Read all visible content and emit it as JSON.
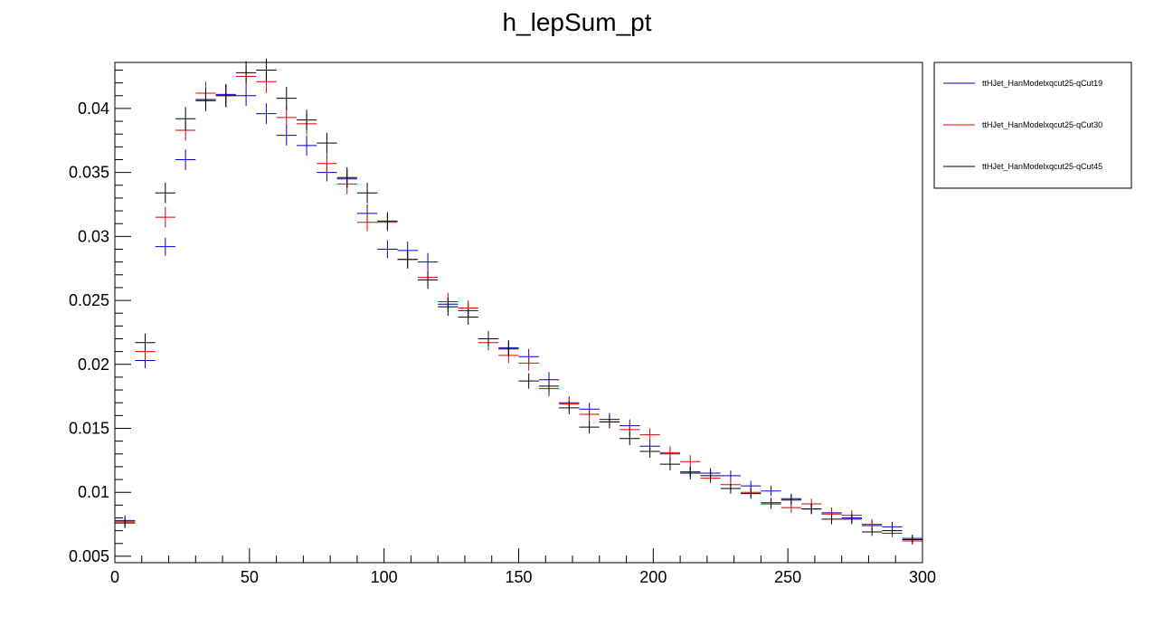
{
  "chart_data": {
    "type": "scatter",
    "title": "h_lepSum_pt",
    "xlabel": "",
    "ylabel": "",
    "xlim": [
      0,
      300
    ],
    "ylim": [
      0.0045,
      0.0436
    ],
    "x_ticks": [
      0,
      50,
      100,
      150,
      200,
      250,
      300
    ],
    "y_ticks": [
      0.005,
      0.01,
      0.015,
      0.02,
      0.025,
      0.03,
      0.035,
      0.04
    ],
    "x_tick_labels": [
      "0",
      "50",
      "100",
      "150",
      "200",
      "250",
      "300"
    ],
    "y_tick_labels": [
      "0.005",
      "0.01",
      "0.015",
      "0.02",
      "0.025",
      "0.03",
      "0.035",
      "0.04"
    ],
    "grid": false,
    "legend_position": "outside-right",
    "bin_width": 7.5,
    "x": [
      3.75,
      11.25,
      18.75,
      26.25,
      33.75,
      41.25,
      48.75,
      56.25,
      63.75,
      71.25,
      78.75,
      86.25,
      93.75,
      101.25,
      108.75,
      116.25,
      123.75,
      131.25,
      138.75,
      146.25,
      153.75,
      161.25,
      168.75,
      176.25,
      183.75,
      191.25,
      198.75,
      206.25,
      213.75,
      221.25,
      228.75,
      236.25,
      243.75,
      251.25,
      258.75,
      266.25,
      273.75,
      281.25,
      288.75,
      296.25
    ],
    "series": [
      {
        "name": "ttHJet_HanModelxqcut25-qCut19",
        "color": "#0000cc",
        "values": [
          0.0078,
          0.0203,
          0.0292,
          0.036,
          0.0406,
          0.0411,
          0.041,
          0.0396,
          0.0379,
          0.0371,
          0.035,
          0.0345,
          0.0318,
          0.029,
          0.0289,
          0.028,
          0.0247,
          0.0242,
          0.022,
          0.0213,
          0.0206,
          0.0188,
          0.017,
          0.0165,
          0.0157,
          0.0152,
          0.0136,
          0.013,
          0.0116,
          0.0115,
          0.0113,
          0.0105,
          0.0101,
          0.0095,
          0.0087,
          0.0084,
          0.008,
          0.0074,
          0.0073,
          0.0064
        ],
        "errors": [
          0.0004,
          0.0006,
          0.0007,
          0.0008,
          0.0008,
          0.0008,
          0.0008,
          0.0008,
          0.0008,
          0.0008,
          0.0007,
          0.0007,
          0.0007,
          0.0007,
          0.0007,
          0.0007,
          0.0006,
          0.0006,
          0.0006,
          0.0006,
          0.0006,
          0.0006,
          0.0005,
          0.0005,
          0.0005,
          0.0005,
          0.0005,
          0.0005,
          0.0004,
          0.0004,
          0.0004,
          0.0004,
          0.0004,
          0.0004,
          0.0004,
          0.0004,
          0.0004,
          0.0004,
          0.0004,
          0.0003
        ]
      },
      {
        "name": "ttHJet_HanModelxqcut25-qCut30",
        "color": "#dd0000",
        "values": [
          0.0077,
          0.021,
          0.0315,
          0.0383,
          0.0412,
          0.041,
          0.0425,
          0.0421,
          0.0393,
          0.0388,
          0.0357,
          0.0341,
          0.0311,
          0.0311,
          0.0282,
          0.0268,
          0.0249,
          0.0244,
          0.0217,
          0.0207,
          0.0201,
          0.0181,
          0.0169,
          0.0161,
          0.0155,
          0.0149,
          0.0145,
          0.0131,
          0.0124,
          0.0111,
          0.0106,
          0.01,
          0.0092,
          0.0088,
          0.0091,
          0.0083,
          0.0082,
          0.0075,
          0.0068,
          0.0062
        ],
        "errors": [
          0.0004,
          0.0007,
          0.0008,
          0.0008,
          0.0009,
          0.0009,
          0.0009,
          0.0009,
          0.0008,
          0.0008,
          0.0008,
          0.0008,
          0.0007,
          0.0007,
          0.0007,
          0.0007,
          0.0007,
          0.0006,
          0.0006,
          0.0006,
          0.0006,
          0.0006,
          0.0005,
          0.0005,
          0.0005,
          0.0005,
          0.0005,
          0.0005,
          0.0005,
          0.0004,
          0.0004,
          0.0004,
          0.0004,
          0.0004,
          0.0004,
          0.0004,
          0.0004,
          0.0004,
          0.0003,
          0.0003
        ]
      },
      {
        "name": "ttHJet_HanModelxqcut25-qCut45",
        "color": "#000000",
        "values": [
          0.0076,
          0.0217,
          0.0334,
          0.0392,
          0.0407,
          0.041,
          0.0428,
          0.043,
          0.0408,
          0.0391,
          0.0373,
          0.0346,
          0.0334,
          0.0312,
          0.0282,
          0.0266,
          0.0245,
          0.0237,
          0.022,
          0.0212,
          0.0187,
          0.0183,
          0.0166,
          0.0151,
          0.0155,
          0.0142,
          0.0132,
          0.0122,
          0.0115,
          0.0113,
          0.0103,
          0.0099,
          0.0091,
          0.0094,
          0.0087,
          0.0079,
          0.0079,
          0.0069,
          0.007,
          0.0063
        ],
        "errors": [
          0.0004,
          0.0007,
          0.0008,
          0.0009,
          0.0009,
          0.0009,
          0.0009,
          0.0009,
          0.0009,
          0.0008,
          0.0008,
          0.0008,
          0.0008,
          0.0007,
          0.0007,
          0.0007,
          0.0007,
          0.0006,
          0.0006,
          0.0006,
          0.0006,
          0.0006,
          0.0005,
          0.0005,
          0.0005,
          0.0005,
          0.0005,
          0.0005,
          0.0005,
          0.0004,
          0.0004,
          0.0004,
          0.0004,
          0.0004,
          0.0004,
          0.0004,
          0.0004,
          0.0003,
          0.0003,
          0.0003
        ]
      }
    ]
  }
}
